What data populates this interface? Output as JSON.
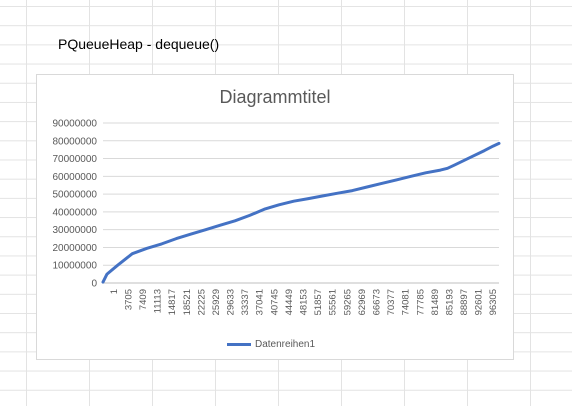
{
  "sheet_title": "PQueueHeap - dequeue()",
  "chart_data": {
    "type": "line",
    "title": "Diagrammtitel",
    "xlabel": "",
    "ylabel": "",
    "x_tick_labels": [
      "1",
      "3705",
      "7409",
      "11113",
      "14817",
      "18521",
      "22225",
      "25929",
      "29633",
      "33337",
      "37041",
      "40745",
      "44449",
      "48153",
      "51857",
      "55561",
      "59265",
      "62969",
      "66673",
      "70377",
      "74081",
      "77785",
      "81489",
      "85193",
      "88897",
      "92601",
      "96305"
    ],
    "y_tick_labels": [
      "0",
      "10000000",
      "20000000",
      "30000000",
      "40000000",
      "50000000",
      "60000000",
      "70000000",
      "80000000",
      "90000000"
    ],
    "ylim": [
      0,
      90000000
    ],
    "xlim": [
      1,
      100000
    ],
    "grid": "horizontal",
    "legend_position": "bottom",
    "series": [
      {
        "name": "Datenreihen1",
        "color": "#4472C4",
        "points": [
          [
            1,
            500000
          ],
          [
            1000,
            5000000
          ],
          [
            3705,
            10000000
          ],
          [
            7409,
            16500000
          ],
          [
            11113,
            19500000
          ],
          [
            14817,
            22000000
          ],
          [
            18521,
            25000000
          ],
          [
            22225,
            27500000
          ],
          [
            25929,
            30000000
          ],
          [
            29633,
            32500000
          ],
          [
            33337,
            35000000
          ],
          [
            37041,
            38000000
          ],
          [
            40745,
            41500000
          ],
          [
            44449,
            44000000
          ],
          [
            48153,
            46000000
          ],
          [
            51857,
            47500000
          ],
          [
            55561,
            49000000
          ],
          [
            59265,
            50500000
          ],
          [
            62969,
            52000000
          ],
          [
            66673,
            54000000
          ],
          [
            70377,
            56000000
          ],
          [
            74081,
            58000000
          ],
          [
            77785,
            60000000
          ],
          [
            81489,
            62000000
          ],
          [
            85193,
            63500000
          ],
          [
            87000,
            64500000
          ],
          [
            88897,
            66500000
          ],
          [
            92601,
            70500000
          ],
          [
            96305,
            74500000
          ],
          [
            98500,
            77000000
          ],
          [
            100000,
            78500000
          ]
        ]
      }
    ]
  }
}
